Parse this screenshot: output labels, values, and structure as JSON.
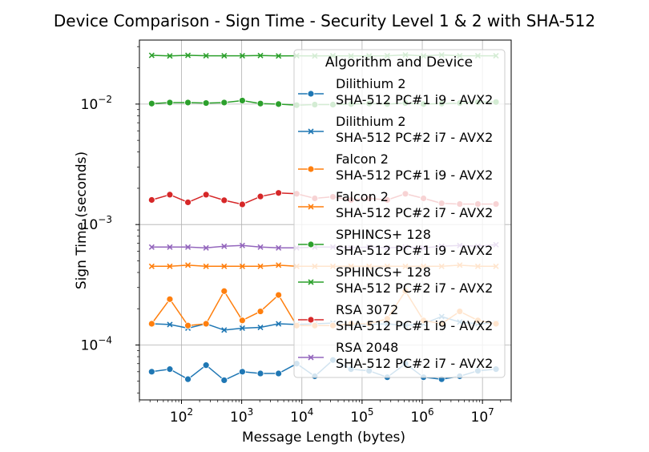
{
  "chart_data": {
    "type": "line",
    "title": "Device Comparison - Sign Time - Security Level 1 & 2 with SHA-512",
    "xlabel": "Message Length (bytes)",
    "ylabel": "Sign Time (seconds)",
    "xscale": "log",
    "yscale": "log",
    "xlim": [
      20,
      30000000
    ],
    "ylim": [
      3.5e-05,
      0.034
    ],
    "x_ticks": [
      {
        "value": 100,
        "base": "10",
        "exp": "2"
      },
      {
        "value": 1000,
        "base": "10",
        "exp": "3"
      },
      {
        "value": 10000,
        "base": "10",
        "exp": "4"
      },
      {
        "value": 100000,
        "base": "10",
        "exp": "5"
      },
      {
        "value": 1000000,
        "base": "10",
        "exp": "6"
      },
      {
        "value": 10000000,
        "base": "10",
        "exp": "7"
      }
    ],
    "y_ticks": [
      {
        "value": 0.0001,
        "base": "10",
        "exp": "−4"
      },
      {
        "value": 0.001,
        "base": "10",
        "exp": "−3"
      },
      {
        "value": 0.01,
        "base": "10",
        "exp": "−2"
      }
    ],
    "grid": true,
    "legend_title": "Algorithm and Device",
    "legend_position": "upper-right",
    "x": [
      32,
      64,
      128,
      256,
      512,
      1024,
      2048,
      4096,
      8192,
      16384,
      32768,
      65536,
      131072,
      262144,
      524288,
      1048576,
      2097152,
      4194304,
      8388608,
      16777216
    ],
    "series": [
      {
        "name": "Dilithium 2",
        "device": "SHA-512 PC#1 i9 - AVX2",
        "color": "#1f77b4",
        "marker": "circle",
        "values": [
          6e-05,
          6.3e-05,
          5.2e-05,
          6.8e-05,
          5.1e-05,
          6e-05,
          5.8e-05,
          5.8e-05,
          7e-05,
          5.5e-05,
          7.5e-05,
          6.3e-05,
          6.1e-05,
          5.4e-05,
          7e-05,
          5.4e-05,
          5.2e-05,
          5.5e-05,
          6.1e-05,
          6.3e-05
        ]
      },
      {
        "name": "Dilithium 2",
        "device": "SHA-512 PC#2 i7 - AVX2",
        "color": "#1f77b4",
        "marker": "x",
        "values": [
          0.00015,
          0.000148,
          0.000138,
          0.00015,
          0.000133,
          0.000138,
          0.00014,
          0.00015,
          0.000148,
          0.00015,
          0.000152,
          0.000145,
          0.000148,
          0.00015,
          0.000145,
          0.00015,
          0.000172,
          0.000155,
          0.00015,
          0.000152
        ]
      },
      {
        "name": "Falcon 2",
        "device": "SHA-512 PC#1 i9 - AVX2",
        "color": "#ff7f0e",
        "marker": "circle",
        "values": [
          0.00015,
          0.00024,
          0.000145,
          0.00015,
          0.00028,
          0.00016,
          0.00019,
          0.00026,
          0.000145,
          0.000145,
          0.000145,
          0.00015,
          0.00015,
          0.000165,
          0.00028,
          0.00016,
          0.00015,
          0.00019,
          0.00016,
          0.00015
        ]
      },
      {
        "name": "Falcon 2",
        "device": "SHA-512 PC#2 i7 - AVX2",
        "color": "#ff7f0e",
        "marker": "x",
        "values": [
          0.00045,
          0.00045,
          0.00046,
          0.00045,
          0.00045,
          0.00045,
          0.00045,
          0.00046,
          0.00045,
          0.00045,
          0.00045,
          0.00045,
          0.00045,
          0.00045,
          0.00045,
          0.00045,
          0.00045,
          0.00046,
          0.00045,
          0.00045
        ]
      },
      {
        "name": "SPHINCS+ 128",
        "device": "SHA-512 PC#1 i9 - AVX2",
        "color": "#2ca02c",
        "marker": "circle",
        "values": [
          0.0101,
          0.0103,
          0.0103,
          0.0102,
          0.0103,
          0.0107,
          0.0101,
          0.01,
          0.0098,
          0.0099,
          0.0099,
          0.01,
          0.0101,
          0.01,
          0.0102,
          0.01,
          0.0101,
          0.0102,
          0.0104,
          0.0104
        ]
      },
      {
        "name": "SPHINCS+ 128",
        "device": "SHA-512 PC#2 i7 - AVX2",
        "color": "#2ca02c",
        "marker": "x",
        "values": [
          0.0254,
          0.0251,
          0.0254,
          0.0252,
          0.0252,
          0.0252,
          0.0253,
          0.0251,
          0.0252,
          0.0251,
          0.0252,
          0.0251,
          0.0251,
          0.0252,
          0.0256,
          0.0251,
          0.0256,
          0.0252,
          0.0252,
          0.0252
        ]
      },
      {
        "name": "RSA 3072",
        "device": "SHA-512 PC#1 i9 - AVX2",
        "color": "#d62728",
        "marker": "circle",
        "values": [
          0.0016,
          0.00177,
          0.00153,
          0.00177,
          0.00159,
          0.00147,
          0.00171,
          0.00183,
          0.0018,
          0.00165,
          0.0017,
          0.0016,
          0.00165,
          0.0016,
          0.0018,
          0.00165,
          0.0015,
          0.00148,
          0.00148,
          0.00148
        ]
      },
      {
        "name": "RSA 2048",
        "device": "SHA-512 PC#2 i7 - AVX2",
        "color": "#9467bd",
        "marker": "x",
        "values": [
          0.00065,
          0.00065,
          0.00065,
          0.00064,
          0.00066,
          0.00067,
          0.00065,
          0.00064,
          0.00064,
          0.00065,
          0.00065,
          0.00064,
          0.00065,
          0.00064,
          0.00065,
          0.00064,
          0.00066,
          0.00067,
          0.00066,
          0.00068
        ]
      }
    ]
  }
}
